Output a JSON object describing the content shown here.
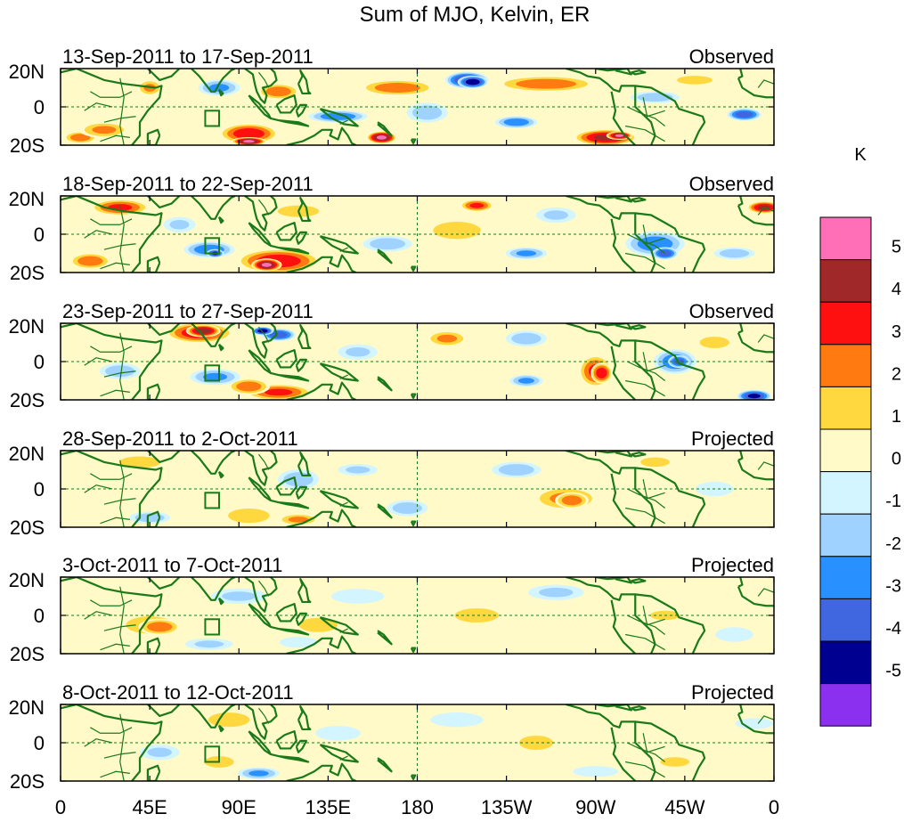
{
  "chart_data": {
    "type": "heatmap",
    "title": "Sum of MJO, Kelvin, ER",
    "x_ticks": [
      "0",
      "45E",
      "90E",
      "135E",
      "180",
      "135W",
      "90W",
      "45W",
      "0"
    ],
    "y_ticks": [
      "20N",
      "0",
      "20S"
    ],
    "ylim": [
      -20,
      20
    ],
    "xlim": [
      0,
      360
    ],
    "colorbar": {
      "unit": "K",
      "levels": [
        "5",
        "4",
        "3",
        "2",
        "1",
        "0",
        "-1",
        "-2",
        "-3",
        "-4",
        "-5"
      ],
      "colors": [
        "#ff6fb7",
        "#a02828",
        "#ff1010",
        "#ff7a10",
        "#ffd840",
        "#fffac8",
        "#d2f5ff",
        "#a0d2ff",
        "#2890ff",
        "#4066e0",
        "#000090",
        "#8c30f0"
      ]
    },
    "panels": [
      {
        "date": "13-Sep-2011 to 17-Sep-2011",
        "label": "Observed"
      },
      {
        "date": "18-Sep-2011 to 22-Sep-2011",
        "label": "Observed"
      },
      {
        "date": "23-Sep-2011 to 27-Sep-2011",
        "label": "Observed"
      },
      {
        "date": "28-Sep-2011 to 2-Oct-2011",
        "label": "Projected"
      },
      {
        "date": "3-Oct-2011 to 7-Oct-2011",
        "label": "Projected"
      },
      {
        "date": "8-Oct-2011 to 12-Oct-2011",
        "label": "Projected"
      }
    ],
    "anomalies": [
      [
        [
          10,
          -16,
          8,
          3,
          3
        ],
        [
          22,
          -12,
          12,
          4,
          2.5
        ],
        [
          45,
          10,
          6,
          4,
          2.5
        ],
        [
          95,
          -14,
          14,
          5,
          4
        ],
        [
          95,
          -18,
          8,
          2,
          5.5
        ],
        [
          170,
          10,
          18,
          4,
          3
        ],
        [
          162,
          -16,
          7,
          3,
          5.5
        ],
        [
          205,
          14,
          10,
          4,
          -4.5
        ],
        [
          208,
          13,
          7,
          3,
          -5
        ],
        [
          245,
          12,
          24,
          4,
          3
        ],
        [
          275,
          -16,
          15,
          4,
          4.5
        ],
        [
          282,
          -15,
          6,
          2,
          5.5
        ],
        [
          345,
          -4,
          8,
          3,
          -4
        ],
        [
          140,
          -5,
          14,
          3,
          -3
        ],
        [
          230,
          -8,
          10,
          3,
          -3
        ],
        [
          80,
          10,
          10,
          4,
          -2.5
        ],
        [
          300,
          5,
          12,
          3,
          -2
        ],
        [
          110,
          8,
          10,
          4,
          3
        ],
        [
          320,
          14,
          12,
          3,
          2
        ],
        [
          185,
          -3,
          10,
          5,
          -2
        ]
      ],
      [
        [
          30,
          14,
          14,
          4,
          3.5
        ],
        [
          15,
          -14,
          10,
          4,
          3
        ],
        [
          110,
          -14,
          20,
          6,
          4
        ],
        [
          104,
          -16,
          7,
          3,
          5.5
        ],
        [
          75,
          -8,
          12,
          4,
          -3
        ],
        [
          78,
          -10,
          4,
          2,
          -4.5
        ],
        [
          210,
          15,
          8,
          3,
          3.5
        ],
        [
          200,
          2,
          16,
          6,
          2
        ],
        [
          300,
          -5,
          14,
          6,
          -3
        ],
        [
          305,
          -10,
          6,
          3,
          -4
        ],
        [
          235,
          -10,
          10,
          3,
          -2.5
        ],
        [
          120,
          12,
          14,
          4,
          2
        ],
        [
          355,
          14,
          8,
          3,
          4.5
        ],
        [
          60,
          5,
          8,
          4,
          -1.5
        ],
        [
          250,
          10,
          10,
          4,
          -1.5
        ],
        [
          165,
          -5,
          12,
          4,
          -2
        ],
        [
          340,
          -10,
          10,
          3,
          -2
        ]
      ],
      [
        [
          70,
          15,
          16,
          5,
          4
        ],
        [
          72,
          16,
          8,
          3,
          5
        ],
        [
          110,
          -16,
          16,
          4,
          3.5
        ],
        [
          95,
          -13,
          10,
          4,
          3
        ],
        [
          110,
          14,
          8,
          3,
          -4
        ],
        [
          102,
          16,
          5,
          2,
          -5
        ],
        [
          78,
          -8,
          12,
          4,
          -2.5
        ],
        [
          270,
          -5,
          8,
          8,
          3.5
        ],
        [
          273,
          -6,
          5,
          5,
          4
        ],
        [
          195,
          12,
          10,
          4,
          2.5
        ],
        [
          310,
          0,
          10,
          6,
          -3
        ],
        [
          312,
          0,
          5,
          3,
          -4
        ],
        [
          350,
          -18,
          8,
          3,
          -4.5
        ],
        [
          330,
          10,
          10,
          4,
          2
        ],
        [
          235,
          -10,
          8,
          3,
          -2.5
        ],
        [
          150,
          5,
          10,
          4,
          -1.5
        ],
        [
          30,
          -5,
          10,
          4,
          -2
        ],
        [
          235,
          12,
          10,
          4,
          -2
        ]
      ],
      [
        [
          40,
          14,
          14,
          4,
          2
        ],
        [
          95,
          -14,
          14,
          5,
          2
        ],
        [
          120,
          -16,
          10,
          3,
          2.5
        ],
        [
          255,
          -5,
          16,
          6,
          2.5
        ],
        [
          258,
          -6,
          8,
          4,
          3
        ],
        [
          120,
          5,
          10,
          5,
          -2
        ],
        [
          45,
          -15,
          10,
          3,
          -2
        ],
        [
          230,
          10,
          12,
          4,
          -2
        ],
        [
          175,
          -10,
          10,
          4,
          -2
        ],
        [
          150,
          10,
          10,
          3,
          -1.5
        ],
        [
          300,
          14,
          12,
          4,
          1.5
        ],
        [
          330,
          0,
          10,
          4,
          -1
        ],
        [
          205,
          0,
          12,
          4,
          1
        ]
      ],
      [
        [
          45,
          -5,
          16,
          6,
          2
        ],
        [
          50,
          -6,
          10,
          4,
          3
        ],
        [
          130,
          -5,
          16,
          6,
          1.5
        ],
        [
          210,
          0,
          18,
          6,
          1.5
        ],
        [
          305,
          0,
          12,
          4,
          1.5
        ],
        [
          90,
          10,
          14,
          4,
          -1.5
        ],
        [
          75,
          -15,
          12,
          3,
          -1.5
        ],
        [
          150,
          10,
          14,
          4,
          -1
        ],
        [
          250,
          12,
          14,
          4,
          -1.5
        ],
        [
          340,
          -10,
          10,
          4,
          -1
        ],
        [
          120,
          -14,
          10,
          3,
          -1
        ]
      ],
      [
        [
          85,
          12,
          14,
          5,
          2
        ],
        [
          80,
          -10,
          10,
          4,
          2
        ],
        [
          50,
          -5,
          10,
          4,
          -1.5
        ],
        [
          100,
          -16,
          10,
          3,
          -2.5
        ],
        [
          240,
          0,
          14,
          6,
          1.5
        ],
        [
          310,
          -10,
          12,
          4,
          1.5
        ],
        [
          175,
          -5,
          14,
          4,
          1
        ],
        [
          200,
          12,
          14,
          4,
          -1
        ],
        [
          140,
          5,
          12,
          4,
          -1
        ],
        [
          30,
          12,
          10,
          3,
          1
        ],
        [
          350,
          10,
          10,
          3,
          -1
        ],
        [
          270,
          -15,
          12,
          3,
          -1
        ]
      ]
    ]
  }
}
